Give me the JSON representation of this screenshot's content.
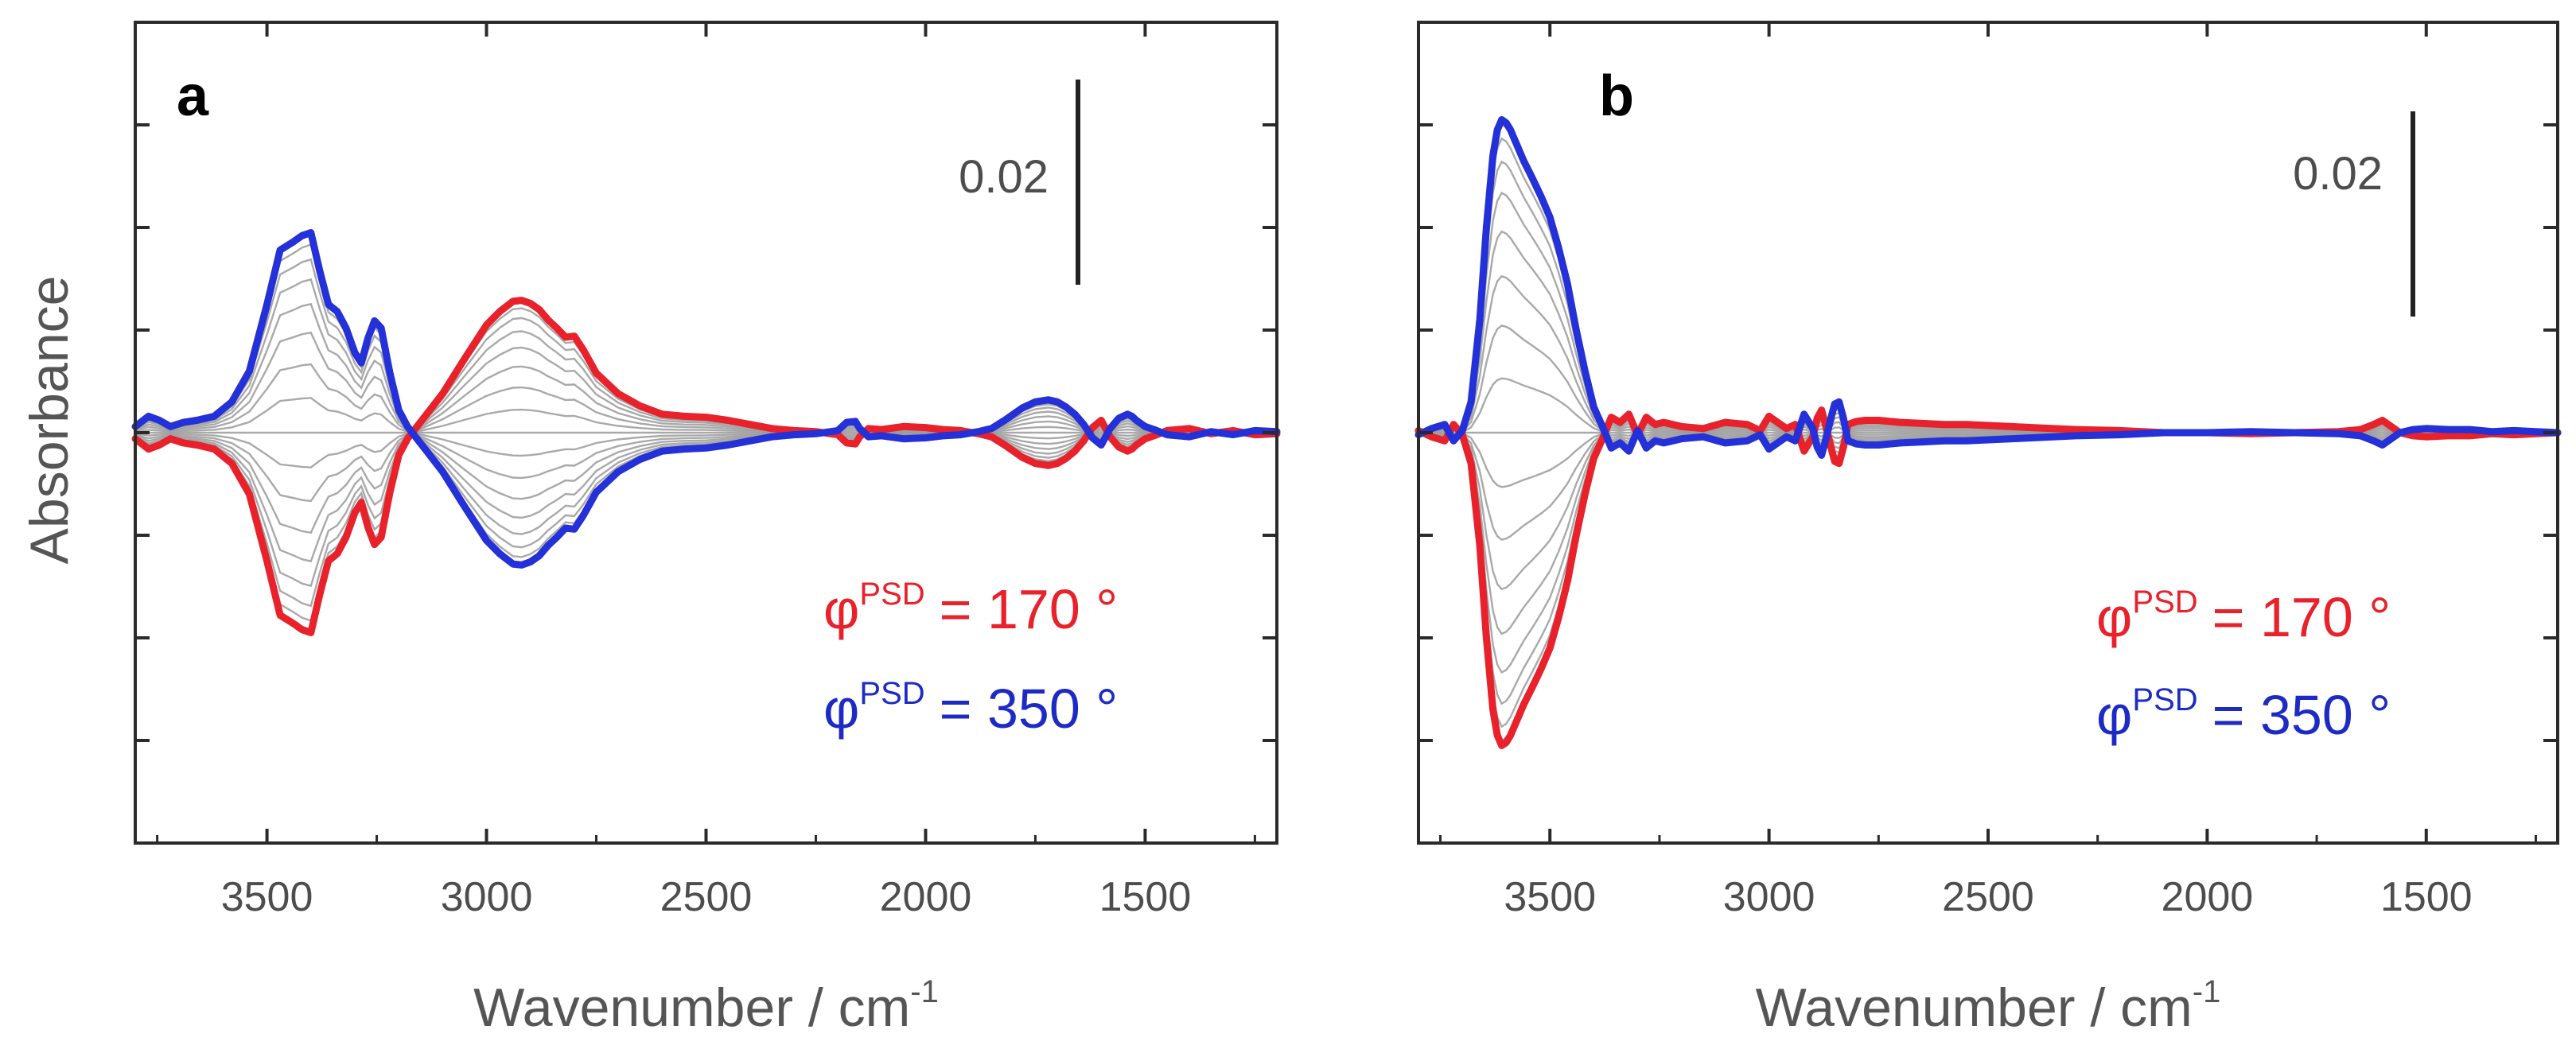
{
  "chart_data": [
    {
      "type": "line",
      "panel": "a",
      "xlabel_main": "Wavenumber / cm",
      "xlabel_sup": "-1",
      "ylabel": "Absorbance",
      "xlim": [
        3800,
        1200
      ],
      "ylim": [
        -0.04,
        0.04
      ],
      "x_ticks": [
        3500,
        3000,
        2500,
        2000,
        1500
      ],
      "x_tick_labels": [
        "3500",
        "3000",
        "2500",
        "2000",
        "1500"
      ],
      "y_ticks": [
        -0.04,
        -0.03,
        -0.02,
        -0.01,
        0,
        0.01,
        0.02,
        0.03,
        0.04
      ],
      "scale_bar": {
        "label": "0.02",
        "value": 0.02
      },
      "legend": [
        {
          "symbol": "φ",
          "sup": "PSD",
          "text": "= 170 °",
          "color": "#e8212b"
        },
        {
          "symbol": "φ",
          "sup": "PSD",
          "text": "= 350 °",
          "color": "#1d2bc4"
        }
      ],
      "intermediate_count": 18,
      "series": [
        {
          "name": "φPSD = 350 °",
          "color": "#2430d8",
          "x": [
            3800,
            3770,
            3745,
            3720,
            3690,
            3660,
            3620,
            3580,
            3540,
            3500,
            3470,
            3440,
            3420,
            3400,
            3380,
            3360,
            3340,
            3320,
            3300,
            3285,
            3270,
            3255,
            3240,
            3220,
            3200,
            3180,
            3160,
            3140,
            3100,
            3050,
            3000,
            2970,
            2940,
            2920,
            2900,
            2880,
            2860,
            2840,
            2820,
            2800,
            2780,
            2750,
            2700,
            2650,
            2600,
            2550,
            2500,
            2450,
            2400,
            2350,
            2300,
            2250,
            2200,
            2180,
            2160,
            2150,
            2130,
            2100,
            2050,
            2000,
            1960,
            1920,
            1880,
            1850,
            1820,
            1800,
            1780,
            1750,
            1720,
            1700,
            1680,
            1660,
            1640,
            1620,
            1600,
            1590,
            1580,
            1560,
            1540,
            1530,
            1520,
            1500,
            1480,
            1450,
            1400,
            1350,
            1300,
            1250,
            1200
          ],
          "y": [
            0.0006,
            0.0016,
            0.0012,
            0.0006,
            0.001,
            0.0012,
            0.0016,
            0.003,
            0.006,
            0.0125,
            0.0178,
            0.0186,
            0.0192,
            0.0195,
            0.0158,
            0.0125,
            0.0118,
            0.0102,
            0.0078,
            0.0068,
            0.0092,
            0.0109,
            0.0102,
            0.0058,
            0.0022,
            0.0006,
            -0.0005,
            -0.0016,
            -0.0038,
            -0.0072,
            -0.0105,
            -0.0118,
            -0.0128,
            -0.0129,
            -0.0126,
            -0.012,
            -0.011,
            -0.0102,
            -0.0093,
            -0.0094,
            -0.0081,
            -0.0058,
            -0.0038,
            -0.0026,
            -0.0018,
            -0.0016,
            -0.0015,
            -0.0012,
            -0.0008,
            -0.0004,
            -0.0002,
            -0.0001,
            0.0002,
            0.001,
            0.0011,
            0.0004,
            -0.0004,
            -0.0003,
            -0.0006,
            -0.0005,
            -0.0003,
            -0.0002,
            0.0001,
            0.0004,
            0.0012,
            0.0018,
            0.0024,
            0.003,
            0.0032,
            0.003,
            0.0025,
            0.0018,
            0.0008,
            -0.0005,
            -0.0012,
            -0.0004,
            0.0004,
            0.0014,
            0.0018,
            0.0016,
            0.0012,
            0.0006,
            0.0003,
            -0.0002,
            -0.0004,
            0.0001,
            -0.0002,
            0.0002,
            0.0001
          ]
        },
        {
          "name": "φPSD = 170 °",
          "color": "#e8212b",
          "x": [
            3800,
            3770,
            3745,
            3720,
            3690,
            3660,
            3620,
            3580,
            3540,
            3500,
            3470,
            3440,
            3420,
            3400,
            3380,
            3360,
            3340,
            3320,
            3300,
            3285,
            3270,
            3255,
            3240,
            3220,
            3200,
            3180,
            3160,
            3140,
            3100,
            3050,
            3000,
            2970,
            2940,
            2920,
            2900,
            2880,
            2860,
            2840,
            2820,
            2800,
            2780,
            2750,
            2700,
            2650,
            2600,
            2550,
            2500,
            2450,
            2400,
            2350,
            2300,
            2250,
            2200,
            2180,
            2160,
            2150,
            2130,
            2100,
            2050,
            2000,
            1960,
            1920,
            1880,
            1850,
            1820,
            1800,
            1780,
            1750,
            1720,
            1700,
            1680,
            1660,
            1640,
            1620,
            1600,
            1590,
            1580,
            1560,
            1540,
            1530,
            1520,
            1500,
            1480,
            1450,
            1400,
            1350,
            1300,
            1250,
            1200
          ],
          "y": [
            -0.0006,
            -0.0016,
            -0.0012,
            -0.0006,
            -0.001,
            -0.0012,
            -0.0016,
            -0.003,
            -0.006,
            -0.0125,
            -0.0178,
            -0.0186,
            -0.0192,
            -0.0195,
            -0.0158,
            -0.0125,
            -0.0118,
            -0.0102,
            -0.0078,
            -0.0068,
            -0.0092,
            -0.0109,
            -0.0102,
            -0.0058,
            -0.0022,
            -0.0006,
            0.0005,
            0.0016,
            0.0038,
            0.0072,
            0.0105,
            0.0118,
            0.0128,
            0.0129,
            0.0126,
            0.012,
            0.011,
            0.0102,
            0.0093,
            0.0094,
            0.0081,
            0.0058,
            0.0038,
            0.0026,
            0.0018,
            0.0016,
            0.0015,
            0.0012,
            0.0008,
            0.0004,
            0.0002,
            0.0001,
            -0.0002,
            -0.001,
            -0.0011,
            -0.0004,
            0.0004,
            0.0003,
            0.0006,
            0.0005,
            0.0003,
            0.0002,
            -0.0001,
            -0.0004,
            -0.0012,
            -0.0018,
            -0.0024,
            -0.003,
            -0.0032,
            -0.003,
            -0.0025,
            -0.0018,
            -0.0008,
            0.0005,
            0.0012,
            0.0004,
            -0.0004,
            -0.0014,
            -0.0018,
            -0.0016,
            -0.0012,
            -0.0006,
            -0.0003,
            0.0002,
            0.0004,
            -0.0001,
            0.0002,
            -0.0002,
            -0.0001
          ]
        }
      ]
    },
    {
      "type": "line",
      "panel": "b",
      "xlabel_main": "Wavenumber / cm",
      "xlabel_sup": "-1",
      "ylabel": "",
      "xlim": [
        3800,
        1200
      ],
      "ylim": [
        -0.04,
        0.04
      ],
      "x_ticks": [
        3500,
        3000,
        2500,
        2000,
        1500
      ],
      "x_tick_labels": [
        "3500",
        "3000",
        "2500",
        "2000",
        "1500"
      ],
      "y_ticks": [
        -0.03,
        -0.02,
        -0.01,
        0,
        0.01,
        0.02,
        0.03
      ],
      "scale_bar": {
        "label": "0.02",
        "value": 0.02
      },
      "legend": [
        {
          "symbol": "φ",
          "sup": "PSD",
          "text": "= 170 °",
          "color": "#e8212b"
        },
        {
          "symbol": "φ",
          "sup": "PSD",
          "text": "= 350 °",
          "color": "#1d2bc4"
        }
      ],
      "intermediate_count": 18,
      "series": [
        {
          "name": "φPSD = 350 °",
          "color": "#2430d8",
          "x": [
            3800,
            3770,
            3740,
            3720,
            3700,
            3680,
            3660,
            3645,
            3630,
            3620,
            3610,
            3600,
            3590,
            3580,
            3560,
            3540,
            3520,
            3500,
            3480,
            3460,
            3440,
            3420,
            3400,
            3380,
            3360,
            3340,
            3320,
            3300,
            3280,
            3260,
            3240,
            3200,
            3150,
            3100,
            3050,
            3020,
            3000,
            2960,
            2940,
            2920,
            2900,
            2890,
            2880,
            2870,
            2860,
            2850,
            2840,
            2830,
            2820,
            2800,
            2780,
            2750,
            2700,
            2650,
            2600,
            2550,
            2500,
            2450,
            2400,
            2300,
            2200,
            2100,
            2000,
            1900,
            1800,
            1700,
            1650,
            1620,
            1600,
            1580,
            1560,
            1530,
            1500,
            1450,
            1400,
            1350,
            1300,
            1250,
            1200
          ],
          "y": [
            -0.0002,
            0.0004,
            0.0008,
            -0.0008,
            0.0002,
            0.003,
            0.011,
            0.02,
            0.027,
            0.0295,
            0.0305,
            0.0302,
            0.0295,
            0.0285,
            0.0265,
            0.0248,
            0.023,
            0.021,
            0.018,
            0.0145,
            0.01,
            0.006,
            0.0025,
            0.0006,
            -0.0015,
            -0.001,
            -0.0018,
            0.0002,
            -0.0015,
            -0.0008,
            -0.001,
            -0.0006,
            -0.0004,
            -0.001,
            -0.0008,
            -0.0002,
            -0.0016,
            -0.0004,
            -0.0008,
            0.0018,
            0.0004,
            -0.0014,
            -0.0022,
            -0.0006,
            0.0012,
            0.0028,
            0.003,
            0.0014,
            -0.0008,
            -0.0011,
            -0.0012,
            -0.0012,
            -0.001,
            -0.0009,
            -0.0008,
            -0.0008,
            -0.0007,
            -0.0006,
            -0.0005,
            -0.0003,
            -0.0002,
            0.0,
            0.0,
            0.0001,
            0.0,
            -0.0001,
            -0.0003,
            -0.0008,
            -0.0012,
            -0.0006,
            0.0,
            0.0003,
            0.0004,
            0.0003,
            0.0003,
            0.0001,
            0.0002,
            0.0001,
            0.0
          ]
        },
        {
          "name": "φPSD = 170 °",
          "color": "#e8212b",
          "x": [
            3800,
            3770,
            3740,
            3720,
            3700,
            3680,
            3660,
            3645,
            3630,
            3620,
            3610,
            3600,
            3590,
            3580,
            3560,
            3540,
            3520,
            3500,
            3480,
            3460,
            3440,
            3420,
            3400,
            3380,
            3360,
            3340,
            3320,
            3300,
            3280,
            3260,
            3240,
            3200,
            3150,
            3100,
            3050,
            3020,
            3000,
            2960,
            2940,
            2920,
            2900,
            2890,
            2880,
            2870,
            2860,
            2850,
            2840,
            2830,
            2820,
            2800,
            2780,
            2750,
            2700,
            2650,
            2600,
            2550,
            2500,
            2450,
            2400,
            2300,
            2200,
            2100,
            2000,
            1900,
            1800,
            1700,
            1650,
            1620,
            1600,
            1580,
            1560,
            1530,
            1500,
            1450,
            1400,
            1350,
            1300,
            1250,
            1200
          ],
          "y": [
            0.0002,
            -0.0004,
            -0.0008,
            0.0008,
            -0.0002,
            -0.003,
            -0.011,
            -0.02,
            -0.027,
            -0.0295,
            -0.0305,
            -0.0302,
            -0.0295,
            -0.0285,
            -0.0265,
            -0.0248,
            -0.023,
            -0.021,
            -0.018,
            -0.0145,
            -0.01,
            -0.006,
            -0.0025,
            -0.0006,
            0.0015,
            0.001,
            0.0018,
            -0.0002,
            0.0015,
            0.0008,
            0.001,
            0.0006,
            0.0004,
            0.001,
            0.0008,
            0.0002,
            0.0016,
            0.0004,
            0.0008,
            -0.0018,
            -0.0004,
            0.0014,
            0.0022,
            0.0006,
            -0.0012,
            -0.0028,
            -0.003,
            -0.0014,
            0.0008,
            0.0011,
            0.0012,
            0.0012,
            0.001,
            0.0009,
            0.0008,
            0.0008,
            0.0007,
            0.0006,
            0.0005,
            0.0003,
            0.0002,
            0.0,
            0.0,
            -0.0001,
            0.0,
            0.0001,
            0.0003,
            0.0008,
            0.0012,
            0.0006,
            0.0,
            -0.0003,
            -0.0004,
            -0.0003,
            -0.0003,
            -0.0001,
            -0.0002,
            -0.0001,
            0.0
          ]
        }
      ]
    }
  ]
}
